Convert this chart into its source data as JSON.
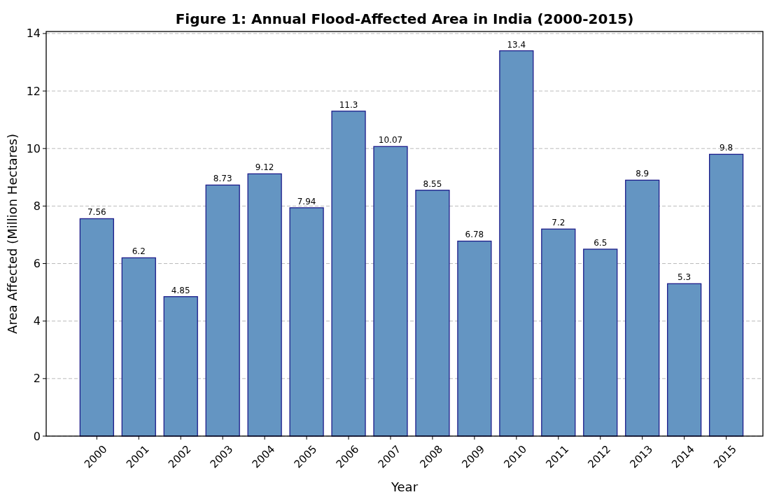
{
  "chart_data": {
    "type": "bar",
    "title": "Figure 1: Annual Flood-Affected Area in India (2000-2015)",
    "xlabel": "Year",
    "ylabel": "Area Affected (Million Hectares)",
    "categories": [
      "2000",
      "2001",
      "2002",
      "2003",
      "2004",
      "2005",
      "2006",
      "2007",
      "2008",
      "2009",
      "2010",
      "2011",
      "2012",
      "2013",
      "2014",
      "2015"
    ],
    "values": [
      7.56,
      6.2,
      4.85,
      8.73,
      9.12,
      7.94,
      11.3,
      10.07,
      8.55,
      6.78,
      13.4,
      7.2,
      6.5,
      8.9,
      5.3,
      9.8
    ],
    "color": "#6495c2",
    "ylim": [
      0,
      14.07
    ],
    "yticks": [
      0,
      2,
      4,
      6,
      8,
      10,
      12,
      14
    ],
    "grid": "y",
    "data_labels": true
  }
}
